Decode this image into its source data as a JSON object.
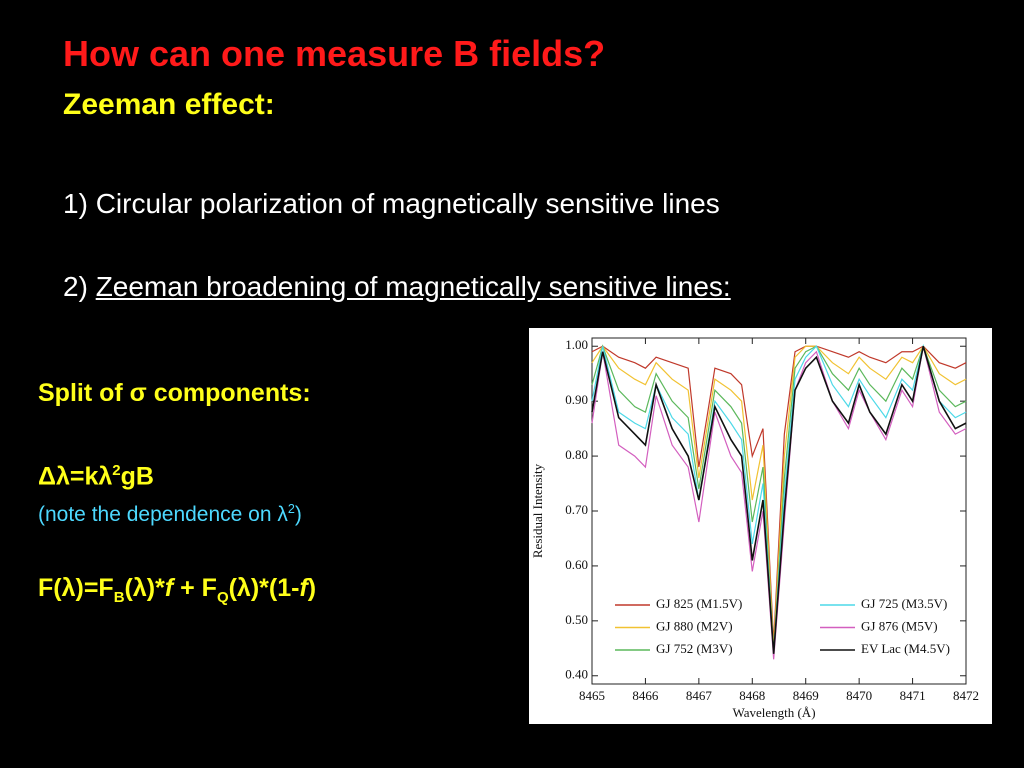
{
  "title": "How can one measure B fields?",
  "subtitle": "Zeeman effect:",
  "points": [
    {
      "number": "1)",
      "text": "Circular polarization of magnetically sensitive lines"
    },
    {
      "number": "2)",
      "text": "Zeeman broadening of magnetically sensitive lines:"
    }
  ],
  "split_heading": "Split of σ components:",
  "formula1": [
    "Δλ=kλ",
    "2",
    "gB"
  ],
  "note": [
    "(note the dependence on λ",
    "2",
    ")"
  ],
  "formula2": [
    "F(λ)=F",
    "B",
    "(λ)*",
    "f",
    " + F",
    "Q",
    "(λ)*(1-",
    "f",
    ")"
  ],
  "chart_data": {
    "type": "line",
    "xlabel": "Wavelength (Å)",
    "ylabel": "Residual Intensity",
    "xlim": [
      8465,
      8472
    ],
    "ylim": [
      0.385,
      1.015
    ],
    "xticks": [
      8465,
      8466,
      8467,
      8468,
      8469,
      8470,
      8471,
      8472
    ],
    "yticks": [
      {
        "value": 0.4,
        "label": "0.40"
      },
      {
        "value": 0.5,
        "label": "0.50"
      },
      {
        "value": 0.6,
        "label": "0.60"
      },
      {
        "value": 0.7,
        "label": "0.70"
      },
      {
        "value": 0.8,
        "label": "0.80"
      },
      {
        "value": 0.9,
        "label": "0.90"
      },
      {
        "value": 1.0,
        "label": "1.00"
      }
    ],
    "x": [
      8465.0,
      8465.2,
      8465.5,
      8465.8,
      8466.0,
      8466.2,
      8466.5,
      8466.8,
      8467.0,
      8467.3,
      8467.6,
      8467.8,
      8468.0,
      8468.2,
      8468.4,
      8468.6,
      8468.8,
      8469.0,
      8469.2,
      8469.5,
      8469.8,
      8470.0,
      8470.2,
      8470.5,
      8470.8,
      8471.0,
      8471.2,
      8471.5,
      8471.8,
      8472.0
    ],
    "series": [
      {
        "name": "GJ 825 (M1.5V)",
        "color": "#c0392b",
        "values": [
          0.99,
          1.0,
          0.98,
          0.97,
          0.96,
          0.98,
          0.97,
          0.96,
          0.78,
          0.96,
          0.95,
          0.93,
          0.8,
          0.85,
          0.46,
          0.84,
          0.99,
          1.0,
          1.0,
          0.99,
          0.98,
          0.99,
          0.98,
          0.97,
          0.99,
          0.99,
          1.0,
          0.97,
          0.96,
          0.97
        ]
      },
      {
        "name": "GJ 880 (M2V)",
        "color": "#f1c232",
        "values": [
          0.97,
          1.0,
          0.96,
          0.94,
          0.93,
          0.97,
          0.94,
          0.92,
          0.76,
          0.94,
          0.92,
          0.9,
          0.72,
          0.82,
          0.45,
          0.8,
          0.98,
          1.0,
          1.0,
          0.97,
          0.95,
          0.98,
          0.96,
          0.94,
          0.98,
          0.97,
          1.0,
          0.95,
          0.93,
          0.94
        ]
      },
      {
        "name": "GJ 752 (M3V)",
        "color": "#5cb85c",
        "values": [
          0.93,
          1.0,
          0.92,
          0.89,
          0.88,
          0.95,
          0.9,
          0.87,
          0.74,
          0.92,
          0.89,
          0.86,
          0.68,
          0.78,
          0.44,
          0.76,
          0.96,
          0.99,
          1.0,
          0.95,
          0.92,
          0.96,
          0.93,
          0.9,
          0.96,
          0.94,
          1.0,
          0.92,
          0.89,
          0.9
        ]
      },
      {
        "name": "GJ 725 (M3.5V)",
        "color": "#4dd9e8",
        "values": [
          0.9,
          1.0,
          0.88,
          0.86,
          0.85,
          0.93,
          0.87,
          0.84,
          0.72,
          0.9,
          0.86,
          0.83,
          0.64,
          0.75,
          0.44,
          0.73,
          0.94,
          0.98,
          1.0,
          0.93,
          0.89,
          0.94,
          0.91,
          0.87,
          0.94,
          0.92,
          1.0,
          0.9,
          0.87,
          0.88
        ]
      },
      {
        "name": "GJ 876 (M5V)",
        "color": "#d35fbf",
        "values": [
          0.86,
          0.99,
          0.82,
          0.8,
          0.78,
          0.91,
          0.82,
          0.78,
          0.68,
          0.88,
          0.8,
          0.77,
          0.59,
          0.7,
          0.43,
          0.68,
          0.92,
          0.97,
          0.99,
          0.9,
          0.85,
          0.92,
          0.88,
          0.83,
          0.92,
          0.89,
          1.0,
          0.88,
          0.84,
          0.85
        ]
      },
      {
        "name": "EV Lac (M4.5V)",
        "color": "#111111",
        "values": [
          0.88,
          0.99,
          0.87,
          0.84,
          0.82,
          0.93,
          0.85,
          0.8,
          0.72,
          0.89,
          0.83,
          0.8,
          0.61,
          0.72,
          0.44,
          0.7,
          0.92,
          0.96,
          0.98,
          0.9,
          0.86,
          0.93,
          0.88,
          0.84,
          0.93,
          0.9,
          1.0,
          0.9,
          0.85,
          0.86
        ]
      }
    ]
  }
}
